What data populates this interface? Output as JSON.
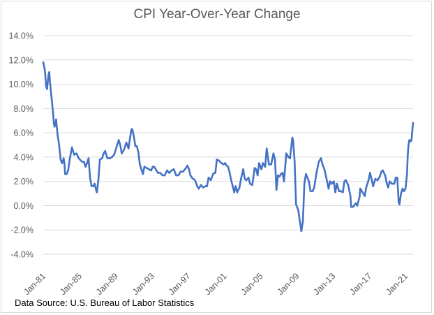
{
  "source_note": "Data Source: U.S. Bureau of Labor Statistics",
  "colors": {
    "line": "#4472c4",
    "grid": "#d9d9d9",
    "axis_text": "#595959"
  },
  "chart_data": {
    "type": "line",
    "title": "CPI Year-Over-Year Change",
    "xlabel": "",
    "ylabel": "",
    "ylim": [
      -4.0,
      14.0
    ],
    "y_tick_step": 2.0,
    "y_ticks": [
      "14.0%",
      "12.0%",
      "10.0%",
      "8.0%",
      "6.0%",
      "4.0%",
      "2.0%",
      "0.0%",
      "-2.0%",
      "-4.0%"
    ],
    "x_ticks": [
      "Jan-81",
      "Jan-85",
      "Jan-89",
      "Jan-93",
      "Jan-97",
      "Jan-01",
      "Jan-05",
      "Jan-09",
      "Jan-13",
      "Jan-17",
      "Jan-21"
    ],
    "xlim": [
      "1981-01",
      "2021-11"
    ],
    "grid": "horizontal",
    "legend": "none",
    "series": [
      {
        "points": [
          [
            "1981-01",
            11.8
          ],
          [
            "1981-03",
            11.2
          ],
          [
            "1981-05",
            9.8
          ],
          [
            "1981-06",
            9.6
          ],
          [
            "1981-08",
            10.8
          ],
          [
            "1981-09",
            11.0
          ],
          [
            "1981-10",
            10.1
          ],
          [
            "1981-12",
            8.9
          ],
          [
            "1982-02",
            7.6
          ],
          [
            "1982-03",
            6.8
          ],
          [
            "1982-04",
            6.5
          ],
          [
            "1982-05",
            6.7
          ],
          [
            "1982-06",
            7.1
          ],
          [
            "1982-08",
            5.8
          ],
          [
            "1982-10",
            5.0
          ],
          [
            "1982-12",
            3.8
          ],
          [
            "1983-02",
            3.5
          ],
          [
            "1983-04",
            3.9
          ],
          [
            "1983-05",
            3.5
          ],
          [
            "1983-06",
            2.6
          ],
          [
            "1983-08",
            2.6
          ],
          [
            "1983-10",
            2.9
          ],
          [
            "1983-12",
            3.8
          ],
          [
            "1984-03",
            4.8
          ],
          [
            "1984-06",
            4.2
          ],
          [
            "1984-09",
            4.3
          ],
          [
            "1984-12",
            3.9
          ],
          [
            "1985-03",
            3.7
          ],
          [
            "1985-05",
            3.6
          ],
          [
            "1985-07",
            3.6
          ],
          [
            "1985-09",
            3.2
          ],
          [
            "1985-11",
            3.5
          ],
          [
            "1986-01",
            3.9
          ],
          [
            "1986-03",
            2.3
          ],
          [
            "1986-05",
            1.6
          ],
          [
            "1986-07",
            1.6
          ],
          [
            "1986-09",
            1.8
          ],
          [
            "1986-11",
            1.3
          ],
          [
            "1986-12",
            1.1
          ],
          [
            "1987-02",
            2.1
          ],
          [
            "1987-04",
            3.8
          ],
          [
            "1987-07",
            3.9
          ],
          [
            "1987-09",
            4.3
          ],
          [
            "1987-11",
            4.5
          ],
          [
            "1988-02",
            3.9
          ],
          [
            "1988-05",
            3.9
          ],
          [
            "1988-08",
            4.0
          ],
          [
            "1988-11",
            4.2
          ],
          [
            "1989-02",
            4.8
          ],
          [
            "1989-05",
            5.4
          ],
          [
            "1989-07",
            5.0
          ],
          [
            "1989-09",
            4.3
          ],
          [
            "1989-12",
            4.6
          ],
          [
            "1990-03",
            5.2
          ],
          [
            "1990-06",
            4.7
          ],
          [
            "1990-08",
            5.6
          ],
          [
            "1990-10",
            6.3
          ],
          [
            "1990-11",
            6.3
          ],
          [
            "1991-01",
            5.7
          ],
          [
            "1991-03",
            4.9
          ],
          [
            "1991-05",
            4.9
          ],
          [
            "1991-07",
            4.4
          ],
          [
            "1991-09",
            3.4
          ],
          [
            "1991-11",
            3.0
          ],
          [
            "1992-01",
            2.6
          ],
          [
            "1992-03",
            3.2
          ],
          [
            "1992-06",
            3.1
          ],
          [
            "1992-09",
            3.0
          ],
          [
            "1992-12",
            2.9
          ],
          [
            "1993-02",
            3.2
          ],
          [
            "1993-04",
            3.2
          ],
          [
            "1993-06",
            3.0
          ],
          [
            "1993-09",
            2.7
          ],
          [
            "1993-12",
            2.7
          ],
          [
            "1994-03",
            2.5
          ],
          [
            "1994-06",
            2.5
          ],
          [
            "1994-09",
            2.9
          ],
          [
            "1994-12",
            2.7
          ],
          [
            "1995-03",
            2.9
          ],
          [
            "1995-06",
            3.0
          ],
          [
            "1995-09",
            2.5
          ],
          [
            "1995-12",
            2.5
          ],
          [
            "1996-03",
            2.8
          ],
          [
            "1996-06",
            2.8
          ],
          [
            "1996-09",
            3.0
          ],
          [
            "1996-12",
            3.3
          ],
          [
            "1997-02",
            3.0
          ],
          [
            "1997-04",
            2.5
          ],
          [
            "1997-06",
            2.3
          ],
          [
            "1997-08",
            2.2
          ],
          [
            "1997-10",
            2.1
          ],
          [
            "1998-01",
            1.6
          ],
          [
            "1998-03",
            1.4
          ],
          [
            "1998-06",
            1.7
          ],
          [
            "1998-09",
            1.5
          ],
          [
            "1998-12",
            1.6
          ],
          [
            "1999-02",
            1.6
          ],
          [
            "1999-04",
            2.3
          ],
          [
            "1999-07",
            2.1
          ],
          [
            "1999-10",
            2.6
          ],
          [
            "1999-12",
            2.7
          ],
          [
            "2000-01",
            2.7
          ],
          [
            "2000-03",
            3.8
          ],
          [
            "2000-06",
            3.7
          ],
          [
            "2000-09",
            3.5
          ],
          [
            "2000-12",
            3.4
          ],
          [
            "2001-02",
            3.5
          ],
          [
            "2001-04",
            3.3
          ],
          [
            "2001-06",
            3.2
          ],
          [
            "2001-08",
            2.7
          ],
          [
            "2001-10",
            2.1
          ],
          [
            "2001-12",
            1.6
          ],
          [
            "2002-02",
            1.1
          ],
          [
            "2002-04",
            1.6
          ],
          [
            "2002-06",
            1.1
          ],
          [
            "2002-09",
            1.5
          ],
          [
            "2002-11",
            2.2
          ],
          [
            "2003-02",
            3.0
          ],
          [
            "2003-04",
            2.2
          ],
          [
            "2003-06",
            2.1
          ],
          [
            "2003-09",
            2.3
          ],
          [
            "2003-11",
            1.8
          ],
          [
            "2004-02",
            1.7
          ],
          [
            "2004-05",
            3.1
          ],
          [
            "2004-07",
            3.0
          ],
          [
            "2004-09",
            2.5
          ],
          [
            "2004-11",
            3.5
          ],
          [
            "2005-02",
            3.0
          ],
          [
            "2005-04",
            3.5
          ],
          [
            "2005-07",
            3.2
          ],
          [
            "2005-09",
            4.7
          ],
          [
            "2005-10",
            4.3
          ],
          [
            "2005-12",
            3.4
          ],
          [
            "2006-03",
            3.4
          ],
          [
            "2006-06",
            4.3
          ],
          [
            "2006-08",
            3.8
          ],
          [
            "2006-10",
            1.3
          ],
          [
            "2006-12",
            2.5
          ],
          [
            "2007-02",
            2.4
          ],
          [
            "2007-04",
            2.6
          ],
          [
            "2007-06",
            2.7
          ],
          [
            "2007-08",
            2.0
          ],
          [
            "2007-11",
            4.3
          ],
          [
            "2008-02",
            4.0
          ],
          [
            "2008-04",
            3.9
          ],
          [
            "2008-07",
            5.6
          ],
          [
            "2008-08",
            5.4
          ],
          [
            "2008-10",
            3.7
          ],
          [
            "2008-12",
            0.1
          ],
          [
            "2009-03",
            -0.4
          ],
          [
            "2009-05",
            -1.3
          ],
          [
            "2009-07",
            -2.1
          ],
          [
            "2009-09",
            -1.3
          ],
          [
            "2009-11",
            1.8
          ],
          [
            "2010-01",
            2.6
          ],
          [
            "2010-03",
            2.3
          ],
          [
            "2010-05",
            2.0
          ],
          [
            "2010-07",
            1.2
          ],
          [
            "2010-10",
            1.2
          ],
          [
            "2010-12",
            1.5
          ],
          [
            "2011-03",
            2.7
          ],
          [
            "2011-06",
            3.6
          ],
          [
            "2011-09",
            3.9
          ],
          [
            "2011-11",
            3.4
          ],
          [
            "2012-02",
            2.9
          ],
          [
            "2012-04",
            2.3
          ],
          [
            "2012-07",
            1.4
          ],
          [
            "2012-09",
            2.0
          ],
          [
            "2012-11",
            1.8
          ],
          [
            "2013-02",
            2.0
          ],
          [
            "2013-04",
            1.1
          ],
          [
            "2013-06",
            1.8
          ],
          [
            "2013-09",
            1.2
          ],
          [
            "2013-11",
            1.2
          ],
          [
            "2014-02",
            1.1
          ],
          [
            "2014-04",
            2.0
          ],
          [
            "2014-06",
            2.1
          ],
          [
            "2014-09",
            1.7
          ],
          [
            "2014-12",
            0.8
          ],
          [
            "2015-01",
            -0.1
          ],
          [
            "2015-03",
            -0.1
          ],
          [
            "2015-05",
            0.0
          ],
          [
            "2015-07",
            0.2
          ],
          [
            "2015-09",
            0.0
          ],
          [
            "2015-12",
            0.7
          ],
          [
            "2016-01",
            1.4
          ],
          [
            "2016-04",
            1.1
          ],
          [
            "2016-07",
            0.8
          ],
          [
            "2016-09",
            1.5
          ],
          [
            "2016-12",
            2.1
          ],
          [
            "2017-02",
            2.7
          ],
          [
            "2017-04",
            2.2
          ],
          [
            "2017-06",
            1.6
          ],
          [
            "2017-09",
            2.2
          ],
          [
            "2017-12",
            2.1
          ],
          [
            "2018-03",
            2.4
          ],
          [
            "2018-05",
            2.8
          ],
          [
            "2018-07",
            2.9
          ],
          [
            "2018-10",
            2.5
          ],
          [
            "2018-12",
            1.9
          ],
          [
            "2019-02",
            1.5
          ],
          [
            "2019-04",
            2.0
          ],
          [
            "2019-07",
            1.8
          ],
          [
            "2019-10",
            1.8
          ],
          [
            "2019-12",
            2.3
          ],
          [
            "2020-02",
            2.3
          ],
          [
            "2020-04",
            0.3
          ],
          [
            "2020-05",
            0.1
          ],
          [
            "2020-07",
            1.0
          ],
          [
            "2020-09",
            1.4
          ],
          [
            "2020-11",
            1.2
          ],
          [
            "2021-01",
            1.4
          ],
          [
            "2021-03",
            2.6
          ],
          [
            "2021-04",
            4.2
          ],
          [
            "2021-05",
            5.0
          ],
          [
            "2021-06",
            5.4
          ],
          [
            "2021-08",
            5.3
          ],
          [
            "2021-09",
            5.4
          ],
          [
            "2021-10",
            6.2
          ],
          [
            "2021-11",
            6.8
          ]
        ]
      }
    ]
  }
}
